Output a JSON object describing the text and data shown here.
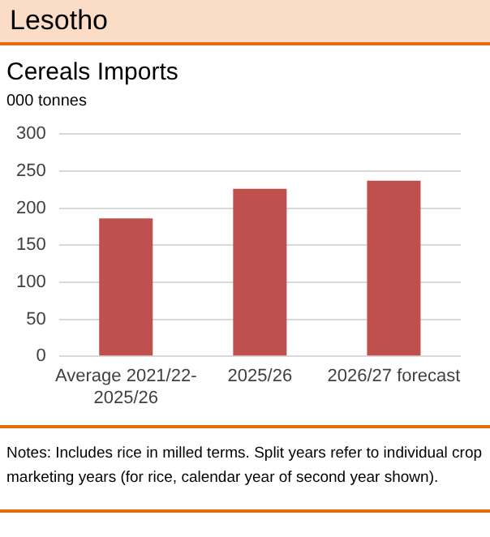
{
  "chart_data": {
    "type": "bar",
    "title": "Lesotho",
    "subtitle": "Cereals Imports",
    "ylabel": "000 tonnes",
    "categories": [
      "Average 2021/22-2025/26",
      "2025/26",
      "2026/27 forecast"
    ],
    "values": [
      186,
      226,
      237
    ],
    "color": "#c0504d",
    "ylim": [
      0,
      300
    ],
    "yticks": [
      0,
      50,
      100,
      150,
      200,
      250,
      300
    ],
    "grid": "y",
    "legend": false,
    "annotations": [
      "Notes: Includes rice in milled terms. Split years refer to individual crop marketing years (for rice, calendar year of second year shown)."
    ]
  }
}
